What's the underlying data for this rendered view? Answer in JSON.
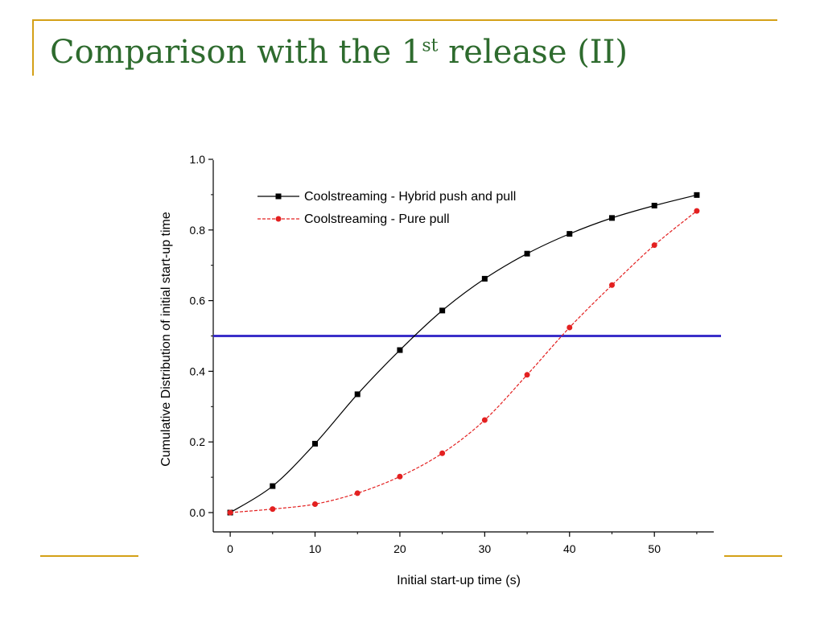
{
  "slide": {
    "title_prefix": "Comparison with the 1",
    "title_sup": "st",
    "title_suffix": " release (II)"
  },
  "colors": {
    "accent": "#d4a017",
    "title": "#2e6b2e",
    "threshold_line": "#3b2fc9",
    "series_hybrid": "#000000",
    "series_pull": "#e32020"
  },
  "chart_data": {
    "type": "line",
    "xlabel": "Initial start-up time (s)",
    "ylabel": "Cumulative Distribution of initial start-up time",
    "xlim": [
      -2,
      57
    ],
    "ylim": [
      0.0,
      1.0
    ],
    "xticks": [
      0,
      10,
      20,
      30,
      40,
      50
    ],
    "yticks": [
      0.0,
      0.2,
      0.4,
      0.6,
      0.8,
      1.0
    ],
    "ytick_labels": [
      "0.0",
      "0.2",
      "0.4",
      "0.6",
      "0.8",
      "1.0"
    ],
    "grid": false,
    "legend_position": "top-left",
    "x": [
      0,
      5,
      10,
      15,
      20,
      25,
      30,
      35,
      40,
      45,
      50,
      55
    ],
    "series": [
      {
        "name": "Coolstreaming - Hybrid push and pull",
        "marker": "square",
        "line_style": "solid",
        "values": [
          0.0,
          0.075,
          0.195,
          0.335,
          0.46,
          0.572,
          0.662,
          0.733,
          0.789,
          0.834,
          0.869,
          0.899
        ]
      },
      {
        "name": "Coolstreaming - Pure pull",
        "marker": "circle",
        "line_style": "dashed",
        "values": [
          0.0,
          0.01,
          0.024,
          0.055,
          0.102,
          0.168,
          0.262,
          0.39,
          0.524,
          0.644,
          0.757,
          0.854
        ]
      }
    ],
    "reference_line": {
      "y": 0.5
    }
  }
}
